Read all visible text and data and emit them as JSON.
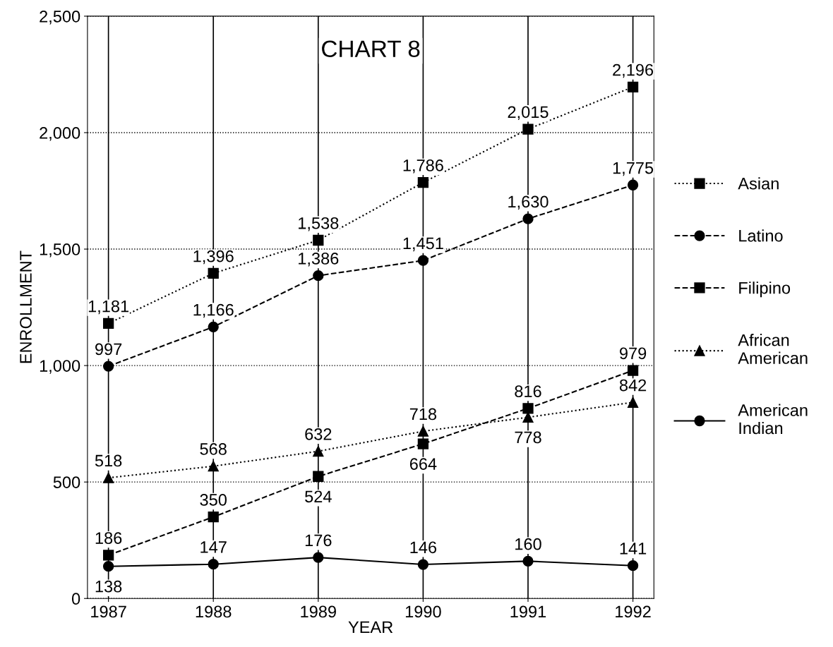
{
  "chart_data": {
    "type": "line",
    "title": "CHART 8",
    "xlabel": "YEAR",
    "ylabel": "ENROLLMENT",
    "categories": [
      "1987",
      "1988",
      "1989",
      "1990",
      "1991",
      "1992"
    ],
    "series": [
      {
        "name": "Asian",
        "color": "#000000",
        "marker": "square",
        "line_style": "dotted",
        "values": [
          1181,
          1396,
          1538,
          1786,
          2015,
          2196
        ],
        "value_labels": [
          "1,181",
          "1,396",
          "1,538",
          "1,786",
          "2,015",
          "2,196"
        ]
      },
      {
        "name": "Latino",
        "color": "#000000",
        "marker": "circle",
        "line_style": "dashed",
        "values": [
          997,
          1166,
          1386,
          1451,
          1630,
          1775
        ],
        "value_labels": [
          "997",
          "1,166",
          "1,386",
          "1,451",
          "1,630",
          "1,775"
        ]
      },
      {
        "name": "Filipino",
        "color": "#000000",
        "marker": "square",
        "line_style": "dashed",
        "values": [
          186,
          350,
          524,
          664,
          816,
          979
        ],
        "value_labels": [
          "186",
          "350",
          "524",
          "664",
          "816",
          "979"
        ]
      },
      {
        "name": "African\nAmerican",
        "color": "#000000",
        "marker": "triangle",
        "line_style": "dotted",
        "values": [
          518,
          568,
          632,
          718,
          778,
          842
        ],
        "value_labels": [
          "518",
          "568",
          "632",
          "718",
          "778",
          "842"
        ]
      },
      {
        "name": "American\nIndian",
        "color": "#000000",
        "marker": "circle",
        "line_style": "solid",
        "values": [
          138,
          147,
          176,
          146,
          160,
          141
        ],
        "value_labels": [
          "138",
          "147",
          "176",
          "146",
          "160",
          "141"
        ]
      }
    ],
    "ylim": [
      0,
      2500
    ],
    "yticks": [
      {
        "value": 0,
        "label": "0"
      },
      {
        "value": 500,
        "label": "500"
      },
      {
        "value": 1000,
        "label": "1,000"
      },
      {
        "value": 1500,
        "label": "1,500"
      },
      {
        "value": 2000,
        "label": "2,000"
      },
      {
        "value": 2500,
        "label": "2,500"
      }
    ],
    "grid": true,
    "legend": "right"
  }
}
